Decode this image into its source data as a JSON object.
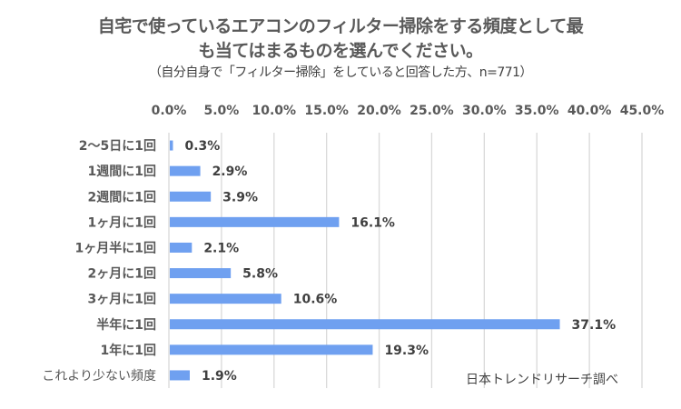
{
  "chart_data": {
    "type": "bar",
    "orientation": "horizontal",
    "title": "自宅で使っているエアコンのフィルター掃除をする頻度として最も当てはまるものを選んでください。",
    "title_lines": [
      "自宅で使っているエアコンのフィルター掃除をする頻度として最",
      "も当てはまるものを選んでください。"
    ],
    "subtitle": "（自分自身で「フィルター掃除」をしていると回答した方、n=771）",
    "categories": [
      "2〜5日に1回",
      "1週間に1回",
      "2週間に1回",
      "1ヶ月に1回",
      "1ヶ月半に1回",
      "2ヶ月に1回",
      "3ヶ月に1回",
      "半年に1回",
      "1年に1回",
      "これより少ない頻度"
    ],
    "values": [
      0.3,
      2.9,
      3.9,
      16.1,
      2.1,
      5.8,
      10.6,
      37.1,
      19.3,
      1.9
    ],
    "data_labels": [
      "0.3%",
      "2.9%",
      "3.9%",
      "16.1%",
      "2.1%",
      "5.8%",
      "10.6%",
      "37.1%",
      "19.3%",
      "1.9%"
    ],
    "xlabel": "",
    "ylabel": "",
    "xlim": [
      0,
      45
    ],
    "x_ticks": [
      0,
      5,
      10,
      15,
      20,
      25,
      30,
      35,
      40,
      45
    ],
    "x_tick_labels": [
      "0.0%",
      "5.0%",
      "10.0%",
      "15.0%",
      "20.0%",
      "25.0%",
      "30.0%",
      "35.0%",
      "40.0%",
      "45.0%"
    ],
    "x_axis_position": "top",
    "grid": true,
    "legend": "none",
    "bar_color": "#6FA0F0",
    "grid_color": "#D9D9D9",
    "annotation": "日本トレンドリサーチ調べ"
  }
}
